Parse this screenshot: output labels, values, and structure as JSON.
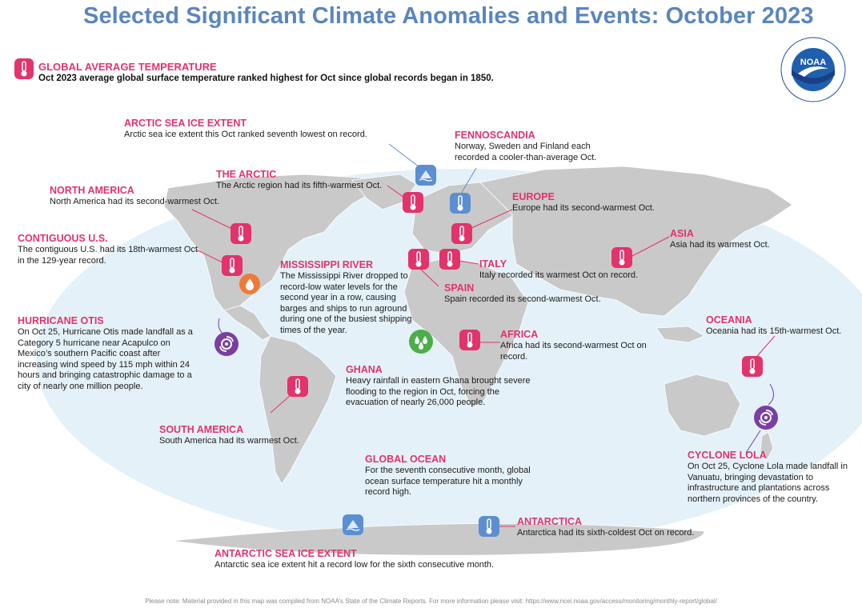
{
  "title": "Selected Significant Climate Anomalies and Events: October 2023",
  "logo_text": "NOAA",
  "global": {
    "heading": "GLOBAL AVERAGE TEMPERATURE",
    "text": "Oct 2023 average global surface temperature ranked highest for Oct since global records began in 1850."
  },
  "events": {
    "arctic_sea_ice": {
      "heading": "ARCTIC SEA ICE EXTENT",
      "text": "Arctic sea ice extent this Oct ranked seventh lowest on record."
    },
    "fennoscandia": {
      "heading": "FENNOSCANDIA",
      "text": "Norway, Sweden and Finland each recorded a cooler-than-average Oct."
    },
    "arctic": {
      "heading": "THE ARCTIC",
      "text": "The Arctic region had its fifth-warmest Oct."
    },
    "north_america": {
      "heading": "NORTH AMERICA",
      "text": "North America had its second-warmest Oct."
    },
    "europe": {
      "heading": "EUROPE",
      "text": "Europe had its second-warmest Oct."
    },
    "contiguous_us": {
      "heading": "CONTIGUOUS U.S.",
      "text": "The contiguous U.S. had its 18th-warmest Oct in the 129-year record."
    },
    "mississippi": {
      "heading": "MISSISSIPPI RIVER",
      "text": "The Mississippi River dropped to record-low water levels for the second year in a row, causing barges and ships to run aground during one of the busiest shipping times of the year."
    },
    "italy": {
      "heading": "ITALY",
      "text": "Italy recorded its warmest Oct on record."
    },
    "asia": {
      "heading": "ASIA",
      "text": "Asia had its warmest Oct."
    },
    "spain": {
      "heading": "SPAIN",
      "text": "Spain recorded its second-warmest Oct."
    },
    "hurricane_otis": {
      "heading": "HURRICANE OTIS",
      "text": "On Oct 25, Hurricane Otis made landfall as a Category 5 hurricane near Acapulco on Mexico’s southern Pacific coast after increasing wind speed by 115 mph within 24 hours and bringing catastrophic damage to a city of nearly one million people."
    },
    "oceania": {
      "heading": "OCEANIA",
      "text": "Oceania had its 15th-warmest Oct."
    },
    "africa": {
      "heading": "AFRICA",
      "text": "Africa had its second-warmest Oct on record."
    },
    "ghana": {
      "heading": "GHANA",
      "text": "Heavy rainfall in eastern Ghana brought severe flooding to the region in Oct, forcing the evacuation of nearly 26,000 people."
    },
    "south_america": {
      "heading": "SOUTH AMERICA",
      "text": "South America had its warmest Oct."
    },
    "cyclone_lola": {
      "heading": "CYCLONE LOLA",
      "text": "On Oct 25, Cyclone Lola made landfall in Vanuatu, bringing devastation to infrastructure and plantations across northern provinces of the country."
    },
    "global_ocean": {
      "heading": "GLOBAL OCEAN",
      "text": "For the seventh consecutive month, global ocean surface temperature hit a monthly record high."
    },
    "antarctica": {
      "heading": "ANTARCTICA",
      "text": "Antarctica had its sixth-coldest Oct on record."
    },
    "antarctic_sea_ice": {
      "heading": "ANTARCTIC SEA ICE EXTENT",
      "text": "Antarctic sea ice extent hit a record low for the sixth consecutive month."
    }
  },
  "footer": "Please note: Material provided in this map was compiled from NOAA’s State of the Climate Reports. For more information please visit: https://www.ncei.noaa.gov/access/monitoring/monthly-report/global/",
  "colors": {
    "heading": "#e2336b",
    "title": "#5a86bd",
    "ocean": "#e4f1f8",
    "land": "#c9c9c9",
    "temp_icon": "#e2336b",
    "ice_icon": "#5b8fd0",
    "cyclone_icon": "#7a3fa2",
    "rain_icon": "#4aae4a",
    "drought_icon": "#ef7a36"
  }
}
